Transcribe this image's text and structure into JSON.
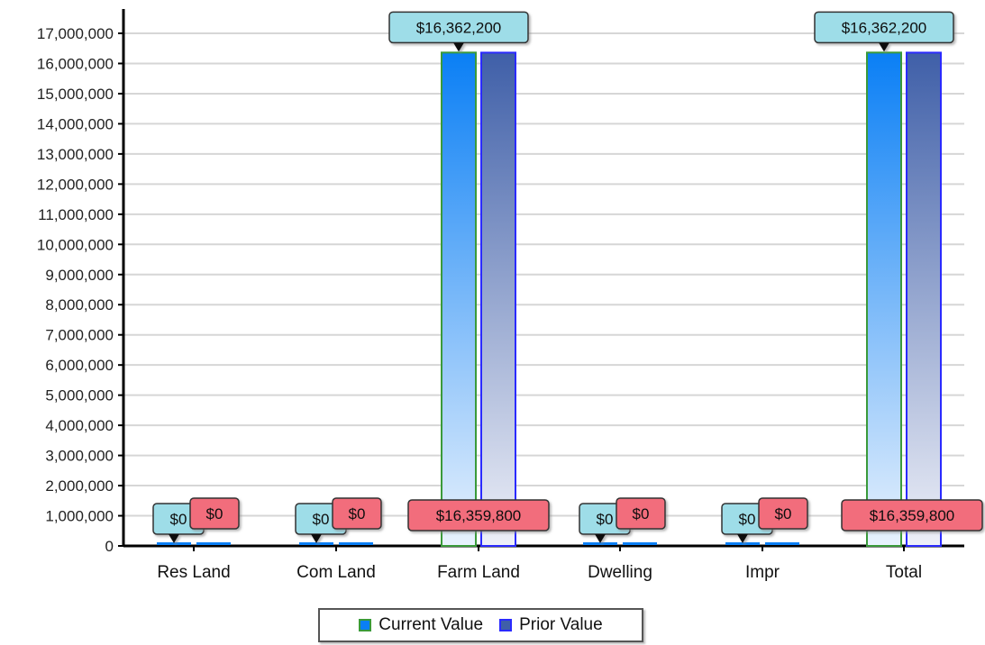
{
  "chart_data": {
    "type": "bar",
    "categories": [
      "Res Land",
      "Com Land",
      "Farm Land",
      "Dwelling",
      "Impr",
      "Total"
    ],
    "series": [
      {
        "name": "Current Value",
        "values": [
          0,
          0,
          16362200,
          0,
          0,
          16362200
        ],
        "labels": [
          "$0",
          "$0",
          "$16,362,200",
          "$0",
          "$0",
          "$16,362,200"
        ]
      },
      {
        "name": "Prior Value",
        "values": [
          0,
          0,
          16359800,
          0,
          0,
          16359800
        ],
        "labels": [
          "$0",
          "$0",
          "$16,359,800",
          "$0",
          "$0",
          "$16,359,800"
        ]
      }
    ],
    "y_ticks": [
      "0",
      "1,000,000",
      "2,000,000",
      "3,000,000",
      "4,000,000",
      "5,000,000",
      "6,000,000",
      "7,000,000",
      "8,000,000",
      "9,000,000",
      "10,000,000",
      "11,000,000",
      "12,000,000",
      "13,000,000",
      "14,000,000",
      "15,000,000",
      "16,000,000",
      "17,000,000"
    ],
    "ylim": [
      0,
      17500000
    ],
    "grid": true,
    "legend_position": "bottom",
    "colors": {
      "current_fill_top": "#0a7ff5",
      "current_fill_bottom": "#e8f2fd",
      "current_stroke": "#3a9a3a",
      "prior_fill_top": "#3f5fa8",
      "prior_fill_bottom": "#eef0f8",
      "prior_stroke": "#2a2aff",
      "current_callout": "#9edde8",
      "prior_callout": "#f26d7b"
    }
  },
  "legend": {
    "current_label": "Current Value",
    "prior_label": "Prior Value"
  }
}
